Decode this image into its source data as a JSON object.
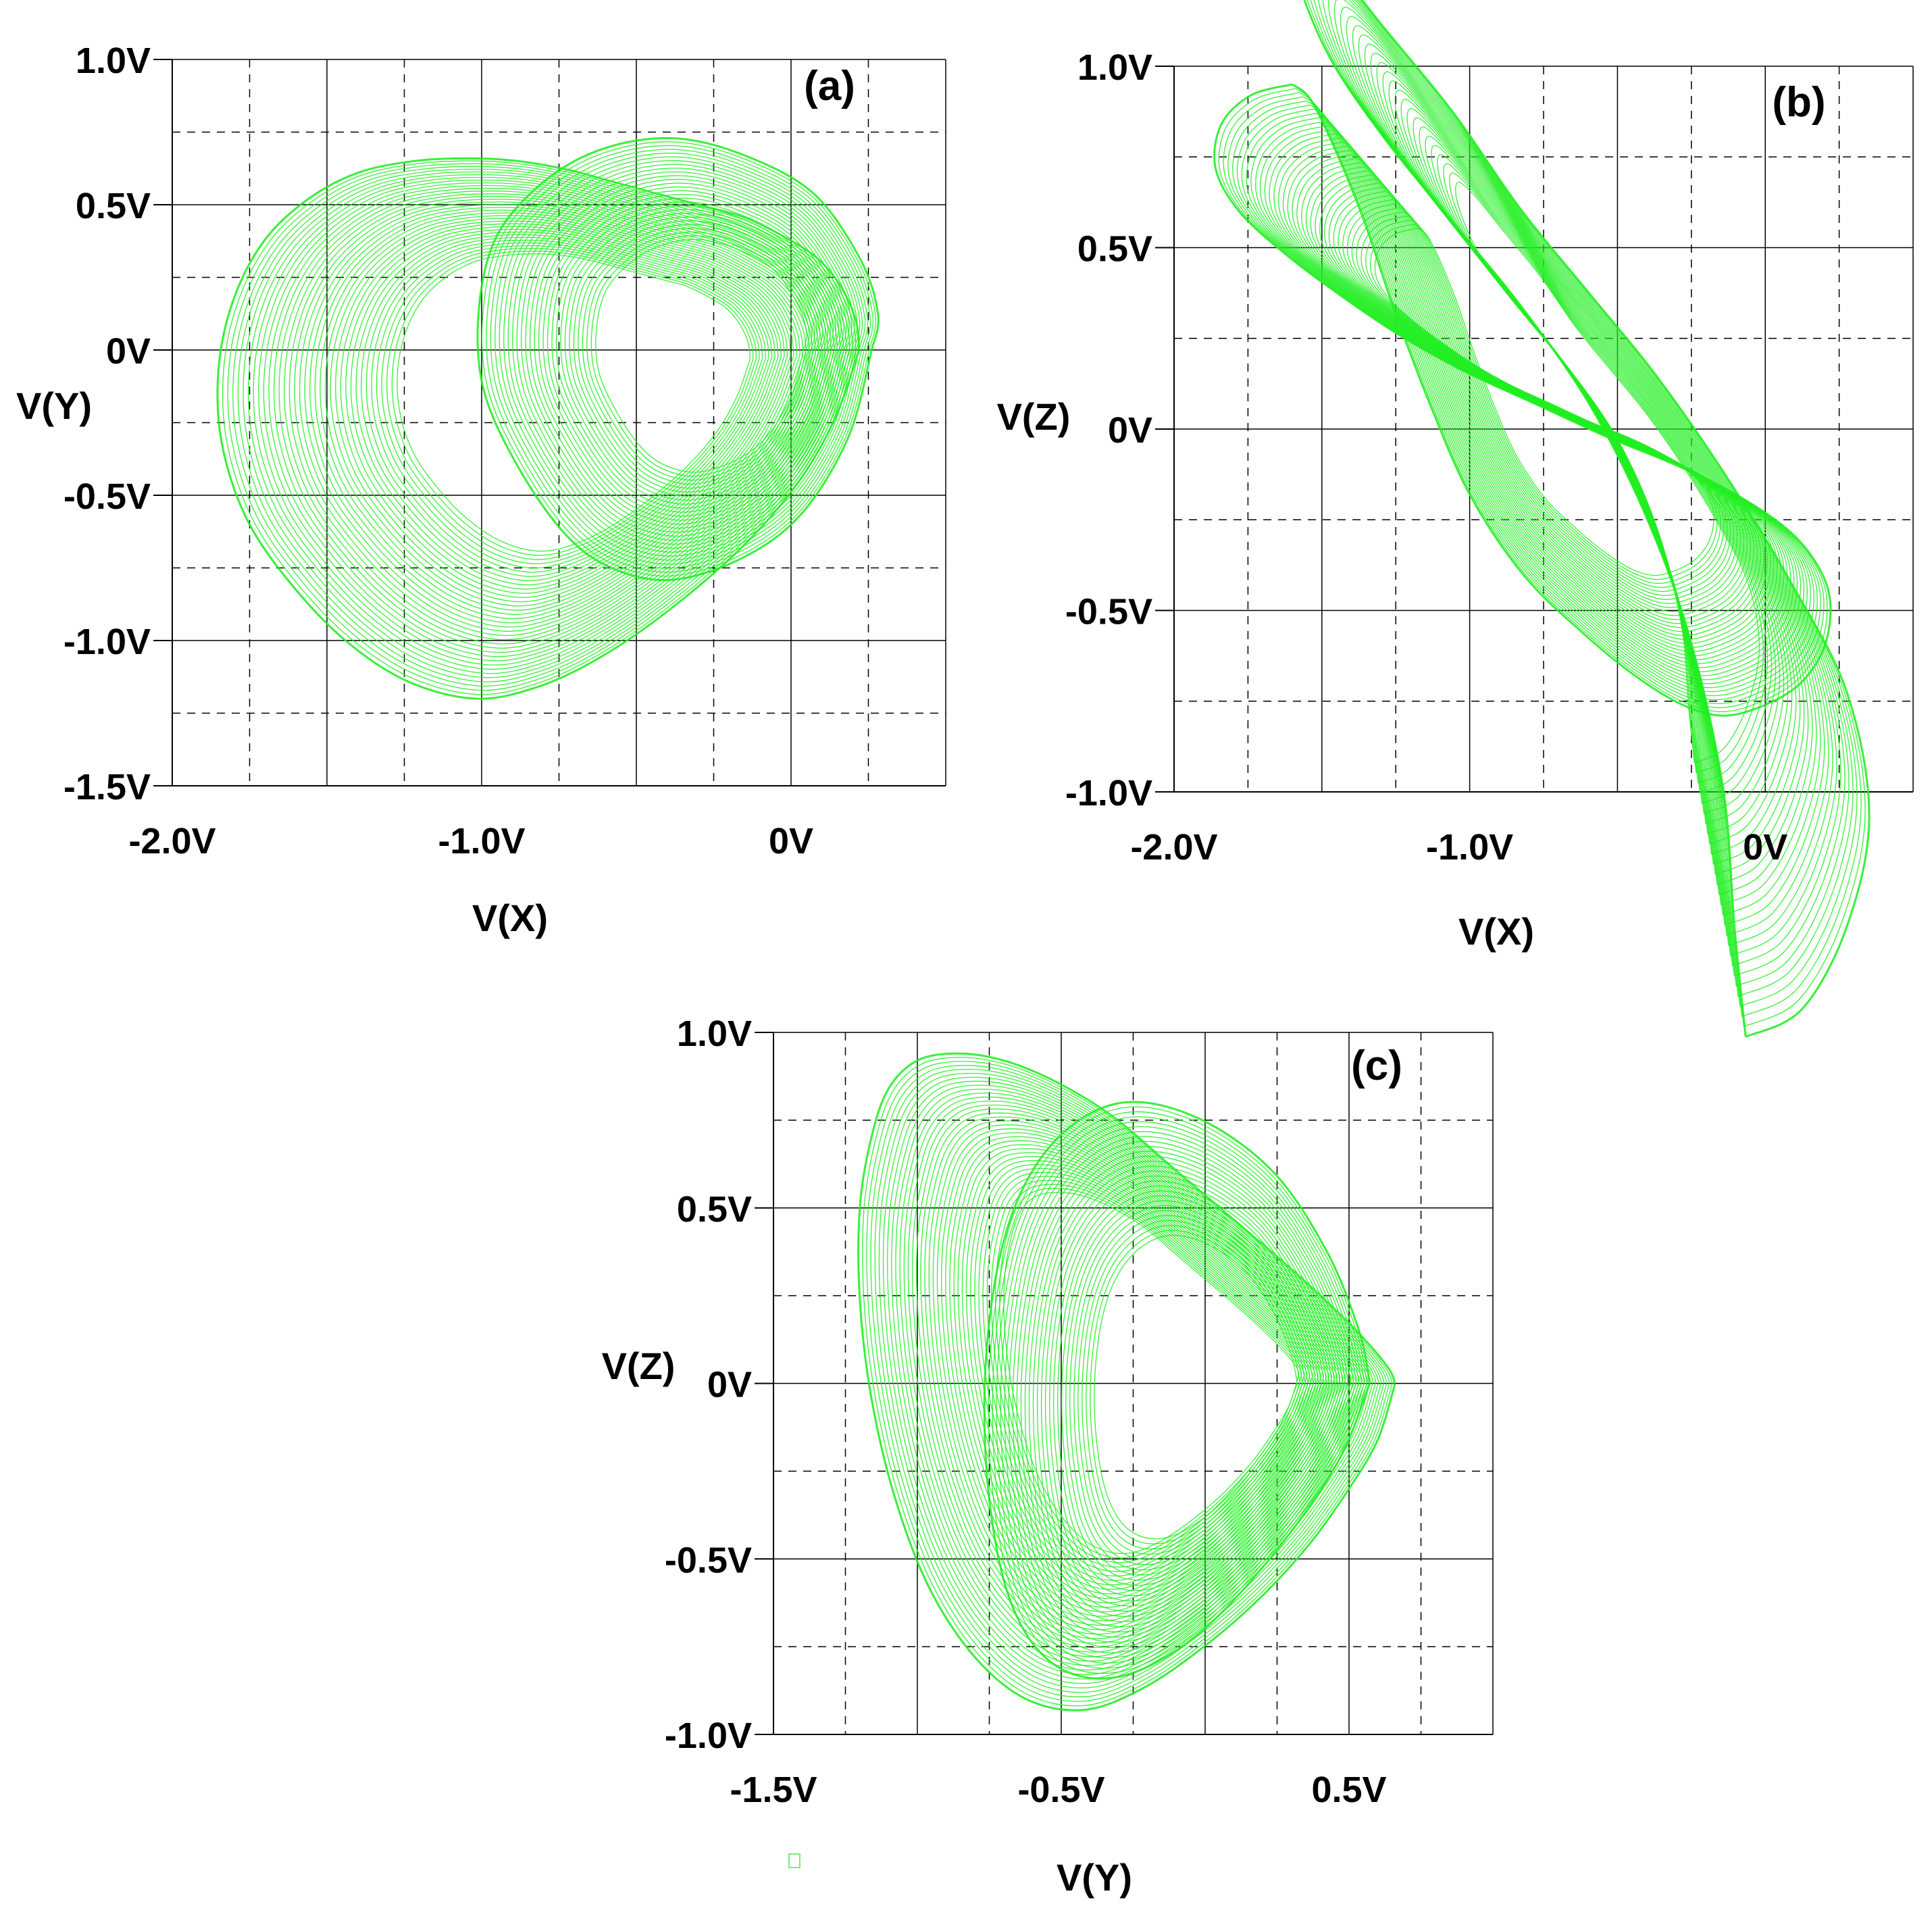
{
  "colors": {
    "trace": "#22ee22",
    "grid": "#000000",
    "background": "#ffffff"
  },
  "chart_data": [
    {
      "id": "a",
      "type": "line",
      "panel_label": "(a)",
      "xlabel": "V(X)",
      "ylabel": "V(Y)",
      "xlim": [
        -2.0,
        0.5
      ],
      "ylim": [
        -1.5,
        1.0
      ],
      "x_ticks": [
        -2.0,
        -1.0,
        0.0
      ],
      "x_tick_labels": [
        "-2.0V",
        "-1.0V",
        "0V"
      ],
      "y_ticks": [
        1.0,
        0.5,
        0.0,
        -0.5,
        -1.0,
        -1.5
      ],
      "y_tick_labels": [
        "1.0V",
        "0.5V",
        "0V",
        "-0.5V",
        "-1.0V",
        "-1.5V"
      ],
      "grid": "solid major, dashed minor",
      "series": [
        {
          "values": {
            "x": [
              0.22,
              0.14,
              0.02,
              -0.16,
              -0.4,
              -0.62,
              -0.82,
              -1.02,
              -1.24,
              -1.44,
              -1.62,
              -1.76,
              -1.84,
              -1.85,
              -1.8,
              -1.7,
              -1.56,
              -1.4,
              -1.22,
              -1.04,
              -0.88,
              -0.72,
              -0.58,
              -0.44,
              -0.3,
              -0.16,
              -0.04,
              0.08,
              0.16,
              0.21,
              0.22
            ],
            "y": [
              0.0,
              -0.24,
              -0.46,
              -0.68,
              -0.9,
              -1.06,
              -1.16,
              -1.2,
              -1.14,
              -1.0,
              -0.8,
              -0.58,
              -0.32,
              -0.06,
              0.18,
              0.38,
              0.52,
              0.61,
              0.65,
              0.66,
              0.65,
              0.62,
              0.58,
              0.54,
              0.5,
              0.46,
              0.4,
              0.32,
              0.22,
              0.1,
              0.0
            ]
          }
        },
        {
          "values": {
            "x": [
              0.04,
              0.0,
              -0.08,
              -0.18,
              -0.3,
              -0.4,
              -0.48,
              -0.56,
              -0.62,
              -0.63,
              -0.6,
              -0.52,
              -0.42,
              -0.3,
              -0.18,
              -0.06,
              0.02,
              0.05,
              0.04
            ],
            "y": [
              0.0,
              -0.16,
              -0.3,
              -0.38,
              -0.42,
              -0.4,
              -0.34,
              -0.22,
              -0.08,
              0.06,
              0.2,
              0.3,
              0.36,
              0.38,
              0.35,
              0.28,
              0.16,
              0.06,
              0.0
            ]
          }
        }
      ]
    },
    {
      "id": "b",
      "type": "line",
      "panel_label": "(b)",
      "xlabel": "V(X)",
      "ylabel": "V(Z)",
      "xlim": [
        -2.0,
        0.5
      ],
      "ylim": [
        -1.0,
        1.0
      ],
      "x_ticks": [
        -2.0,
        -1.0,
        0.0
      ],
      "x_tick_labels": [
        "-2.0V",
        "-1.0V",
        "0V"
      ],
      "y_ticks": [
        1.0,
        0.5,
        0.0,
        -0.5,
        -1.0
      ],
      "y_tick_labels": [
        "1.0V",
        "0.5V",
        "0V",
        "-0.5V",
        "-1.0V"
      ],
      "grid": "solid major, dashed minor",
      "series": [
        {
          "values": {
            "x": [
              -1.6,
              -1.74,
              -1.84,
              -1.86,
              -1.78,
              -1.62,
              -1.44,
              -1.24,
              -1.02,
              -0.78,
              -0.54,
              -0.3,
              -0.1,
              0.08,
              0.18,
              0.22,
              0.2,
              0.12,
              0.0,
              -0.14,
              -0.28,
              -0.44,
              -0.62,
              -0.82,
              -1.0,
              -1.14,
              -1.26,
              -1.36,
              -1.46,
              -1.54,
              -1.6
            ],
            "y": [
              0.95,
              0.92,
              0.84,
              0.72,
              0.6,
              0.48,
              0.37,
              0.26,
              0.16,
              0.07,
              -0.02,
              -0.1,
              -0.18,
              -0.28,
              -0.38,
              -0.48,
              -0.6,
              -0.7,
              -0.76,
              -0.79,
              -0.76,
              -0.68,
              -0.56,
              -0.4,
              -0.18,
              0.08,
              0.34,
              0.58,
              0.78,
              0.91,
              0.95
            ]
          }
        },
        {
          "values": {
            "x": [
              -0.24,
              -0.14,
              -0.06,
              -0.02,
              -0.06,
              -0.16,
              -0.28,
              -0.4,
              -0.52,
              -0.64,
              -0.76,
              -0.88,
              -0.98,
              -1.04,
              -1.04,
              -0.98,
              -0.88,
              -0.76,
              -0.64,
              -0.52,
              -0.42,
              -0.34,
              -0.28,
              -0.26,
              -0.24
            ],
            "y": [
              -0.92,
              -0.88,
              -0.76,
              -0.6,
              -0.42,
              -0.26,
              -0.1,
              0.04,
              0.16,
              0.28,
              0.42,
              0.54,
              0.64,
              0.68,
              0.62,
              0.5,
              0.38,
              0.26,
              0.14,
              0.0,
              -0.16,
              -0.34,
              -0.56,
              -0.76,
              -0.92
            ]
          }
        }
      ]
    },
    {
      "id": "c",
      "type": "line",
      "panel_label": "(c)",
      "xlabel": "V(Y)",
      "ylabel": "V(Z)",
      "xlim": [
        -1.5,
        1.0
      ],
      "ylim": [
        -1.0,
        1.0
      ],
      "x_ticks": [
        -1.5,
        -0.5,
        0.5
      ],
      "x_tick_labels": [
        "-1.5V",
        "-0.5V",
        "0.5V"
      ],
      "y_ticks": [
        1.0,
        0.5,
        0.0,
        -0.5,
        -1.0
      ],
      "y_tick_labels": [
        "1.0V",
        "0.5V",
        "0V",
        "-0.5V",
        "-1.0V"
      ],
      "grid": "solid major, dashed minor",
      "series": [
        {
          "values": {
            "x": [
              0.66,
              0.6,
              0.5,
              0.36,
              0.18,
              -0.02,
              -0.22,
              -0.42,
              -0.62,
              -0.8,
              -0.96,
              -1.08,
              -1.16,
              -1.2,
              -1.2,
              -1.16,
              -1.1,
              -1.0,
              -0.86,
              -0.7,
              -0.52,
              -0.32,
              -0.12,
              0.08,
              0.28,
              0.44,
              0.56,
              0.64,
              0.66
            ],
            "y": [
              0.0,
              -0.16,
              -0.3,
              -0.46,
              -0.62,
              -0.76,
              -0.87,
              -0.93,
              -0.9,
              -0.78,
              -0.58,
              -0.32,
              -0.04,
              0.24,
              0.5,
              0.7,
              0.84,
              0.92,
              0.94,
              0.92,
              0.86,
              0.76,
              0.62,
              0.48,
              0.34,
              0.22,
              0.12,
              0.04,
              0.0
            ]
          }
        },
        {
          "values": {
            "x": [
              0.32,
              0.26,
              0.14,
              0.0,
              -0.14,
              -0.26,
              -0.34,
              -0.38,
              -0.38,
              -0.34,
              -0.26,
              -0.14,
              0.0,
              0.14,
              0.24,
              0.3,
              0.32
            ],
            "y": [
              0.0,
              -0.12,
              -0.26,
              -0.38,
              -0.44,
              -0.42,
              -0.32,
              -0.14,
              0.06,
              0.24,
              0.36,
              0.42,
              0.4,
              0.32,
              0.2,
              0.08,
              0.0
            ]
          }
        }
      ]
    }
  ]
}
